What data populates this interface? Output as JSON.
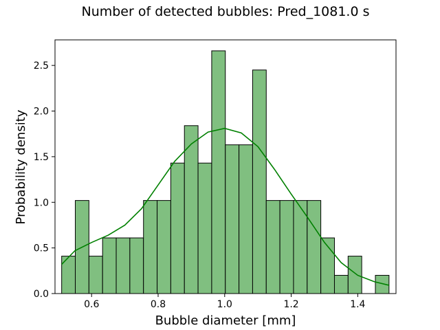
{
  "chart_data": {
    "type": "bar",
    "title": "Number of detected bubbles: Pred_1081.0 s",
    "xlabel": "Bubble diameter [mm]",
    "ylabel": "Probability density",
    "xlim": [
      0.49,
      1.515
    ],
    "ylim": [
      0,
      2.78
    ],
    "xticks": [
      "0.6",
      "0.8",
      "1.0",
      "1.2",
      "1.4"
    ],
    "yticks": [
      "0.0",
      "0.5",
      "1.0",
      "1.5",
      "2.0",
      "2.5"
    ],
    "grid": false,
    "bin_start": 0.51,
    "bin_width": 0.041,
    "values": [
      0.41,
      1.02,
      0.41,
      0.61,
      0.61,
      0.61,
      1.02,
      1.02,
      1.43,
      1.84,
      1.43,
      2.66,
      1.63,
      1.63,
      2.45,
      1.02,
      1.02,
      1.02,
      1.02,
      0.61,
      0.2,
      0.41,
      0.0,
      0.2
    ],
    "kde": {
      "x": [
        0.51,
        0.55,
        0.6,
        0.65,
        0.7,
        0.75,
        0.8,
        0.85,
        0.9,
        0.95,
        1.0,
        1.05,
        1.1,
        1.15,
        1.2,
        1.25,
        1.3,
        1.35,
        1.4,
        1.45,
        1.495
      ],
      "y": [
        0.32,
        0.47,
        0.56,
        0.64,
        0.75,
        0.93,
        1.19,
        1.45,
        1.64,
        1.77,
        1.81,
        1.76,
        1.61,
        1.36,
        1.09,
        0.83,
        0.56,
        0.34,
        0.2,
        0.13,
        0.09
      ]
    },
    "colors": {
      "bar_fill": "#80bf80",
      "bar_edge": "#000000",
      "kde_line": "#008000"
    }
  }
}
